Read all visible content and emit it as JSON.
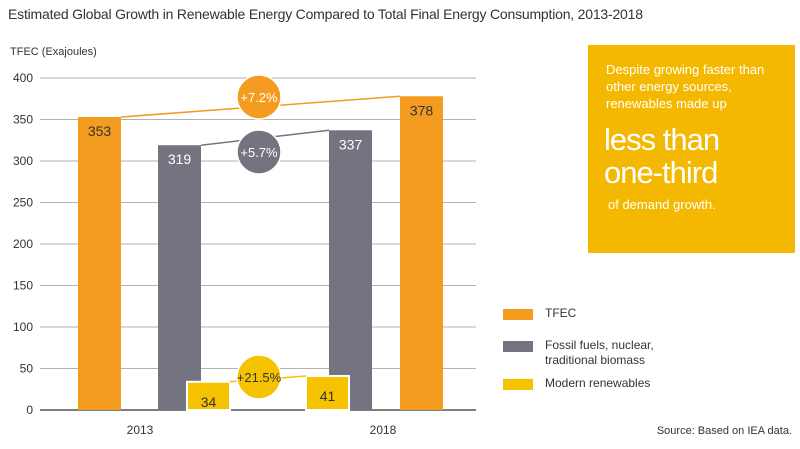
{
  "title": "Estimated Global Growth in Renewable Energy Compared to Total Final Energy Consumption, 2013-2018",
  "callout": {
    "line1": "Despite growing faster than other energy sources, renewables made up",
    "big1": "less than",
    "big2": "one-third",
    "line2": "of demand growth."
  },
  "source": "Source: Based on IEA data.",
  "colors": {
    "tfec": "#f39c1f",
    "fossil": "#747480",
    "renewables": "#f5c300",
    "callout_bg": "#f5b800"
  },
  "chart_data": {
    "type": "bar",
    "title": "Estimated Global Growth in Renewable Energy Compared to Total Final Energy Consumption, 2013-2018",
    "ylabel": "TFEC (Exajoules)",
    "xlabel": "",
    "categories": [
      "2013",
      "2018"
    ],
    "ylim": [
      0,
      400
    ],
    "yticks": [
      0,
      50,
      100,
      150,
      200,
      250,
      300,
      350,
      400
    ],
    "grid": true,
    "legend_position": "right",
    "series": [
      {
        "name": "TFEC",
        "values": [
          353,
          378
        ],
        "labels": [
          "353",
          "378"
        ],
        "color": "#f39c1f"
      },
      {
        "name": "Fossil fuels, nuclear, traditional biomass",
        "values": [
          319,
          337
        ],
        "labels": [
          "319",
          "337"
        ],
        "color": "#747480"
      },
      {
        "name": "Modern renewables",
        "values": [
          34,
          41
        ],
        "labels": [
          "34",
          "41"
        ],
        "color": "#f5c300"
      }
    ],
    "growth_annotations": [
      {
        "series": "TFEC",
        "text": "+7.2%",
        "color": "#f39c1f"
      },
      {
        "series": "Fossil fuels, nuclear, traditional biomass",
        "text": "+5.7%",
        "color": "#747480"
      },
      {
        "series": "Modern renewables",
        "text": "+21.5%",
        "color": "#f5c300"
      }
    ]
  }
}
